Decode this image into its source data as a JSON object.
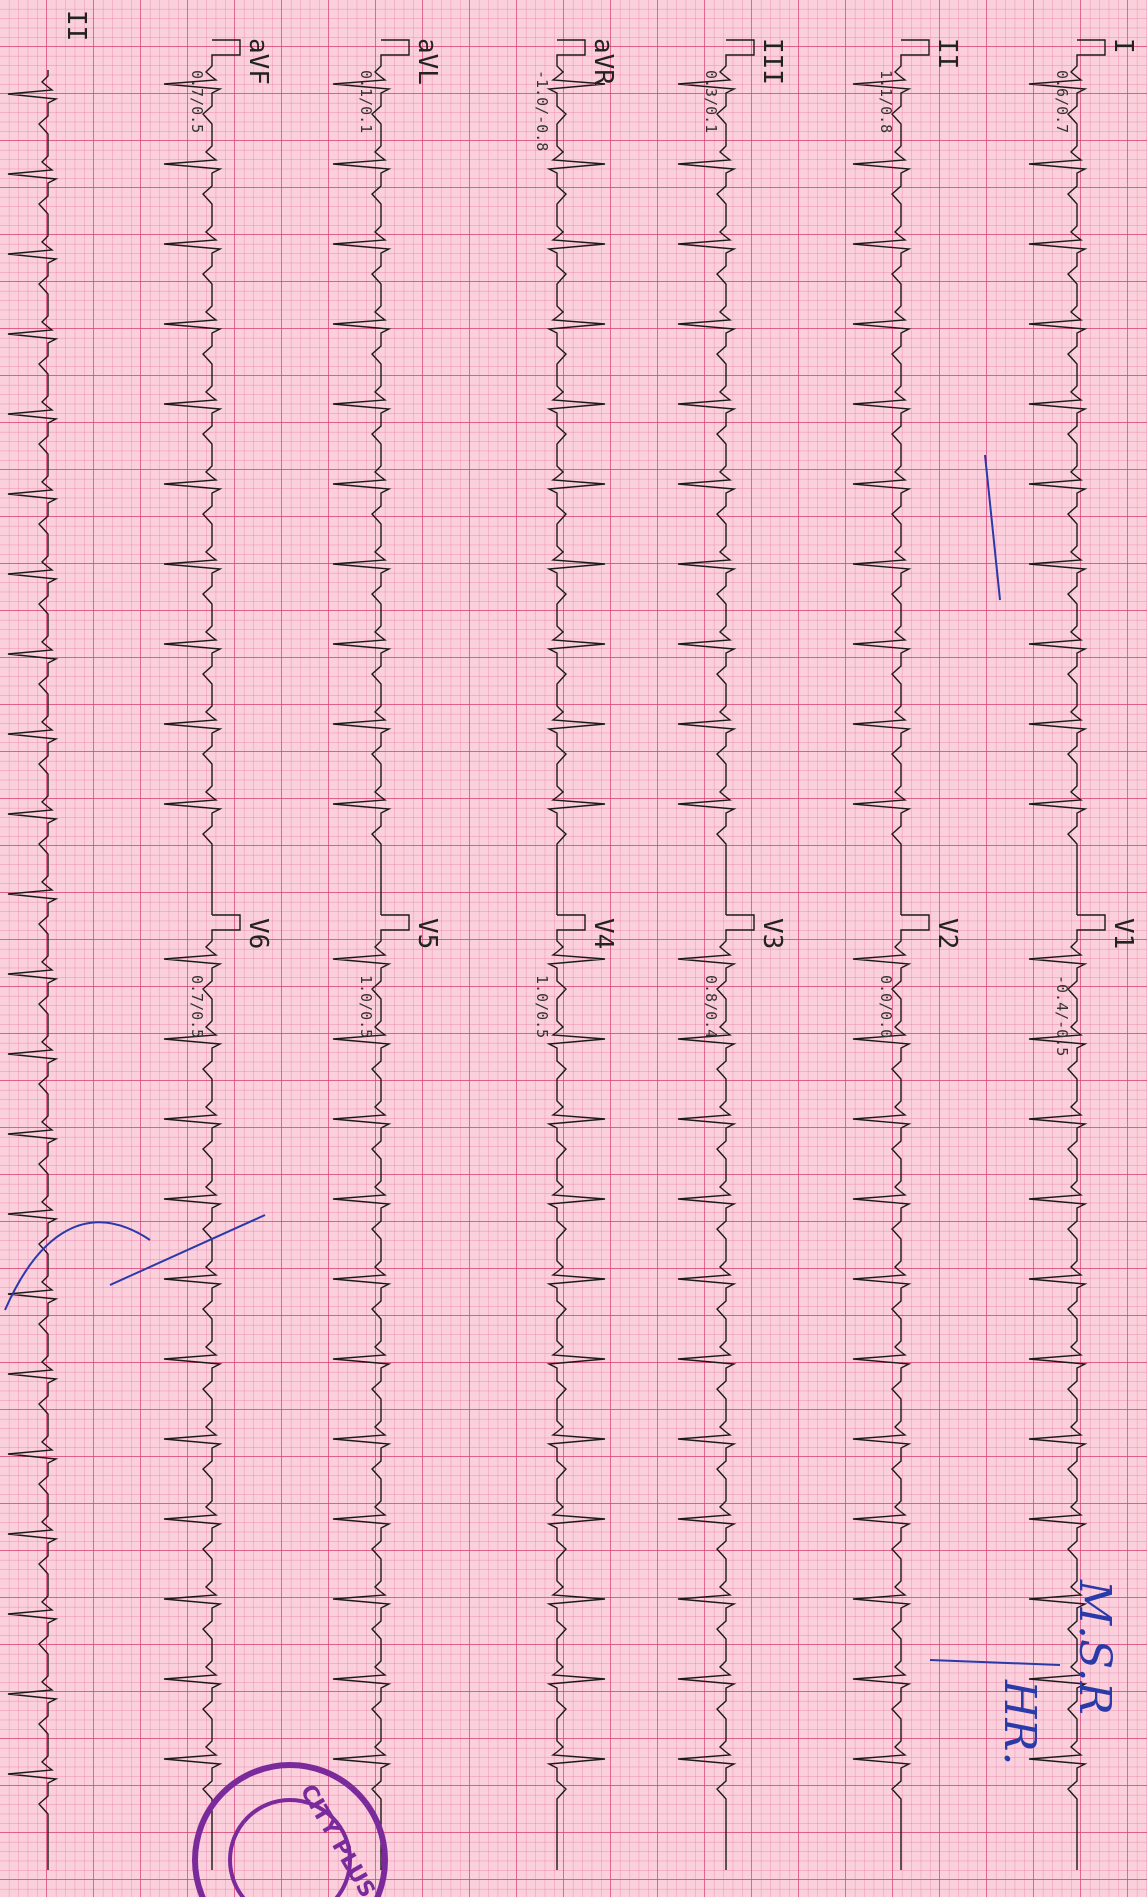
{
  "limb_leads": [
    {
      "name": "I",
      "amplitude": "0.6/0.7"
    },
    {
      "name": "II",
      "amplitude": "1.1/0.8"
    },
    {
      "name": "III",
      "amplitude": "0.3/0.1"
    },
    {
      "name": "aVR",
      "amplitude": "-1.0/-0.8"
    },
    {
      "name": "aVL",
      "amplitude": "0.1/0.1"
    },
    {
      "name": "aVF",
      "amplitude": "0.7/0.5"
    }
  ],
  "chest_leads": [
    {
      "name": "V1",
      "amplitude": "-0.4/-0.5"
    },
    {
      "name": "V2",
      "amplitude": "0.0/0.0"
    },
    {
      "name": "V3",
      "amplitude": "0.8/0.4"
    },
    {
      "name": "V4",
      "amplitude": "1.0/0.5"
    },
    {
      "name": "V5",
      "amplitude": "1.0/0.5"
    },
    {
      "name": "V6",
      "amplitude": "0.7/0.5"
    }
  ],
  "rhythm_lead": "II",
  "handwriting": [
    "M.S.R",
    "HR."
  ],
  "stamp": "CITY PLUS"
}
